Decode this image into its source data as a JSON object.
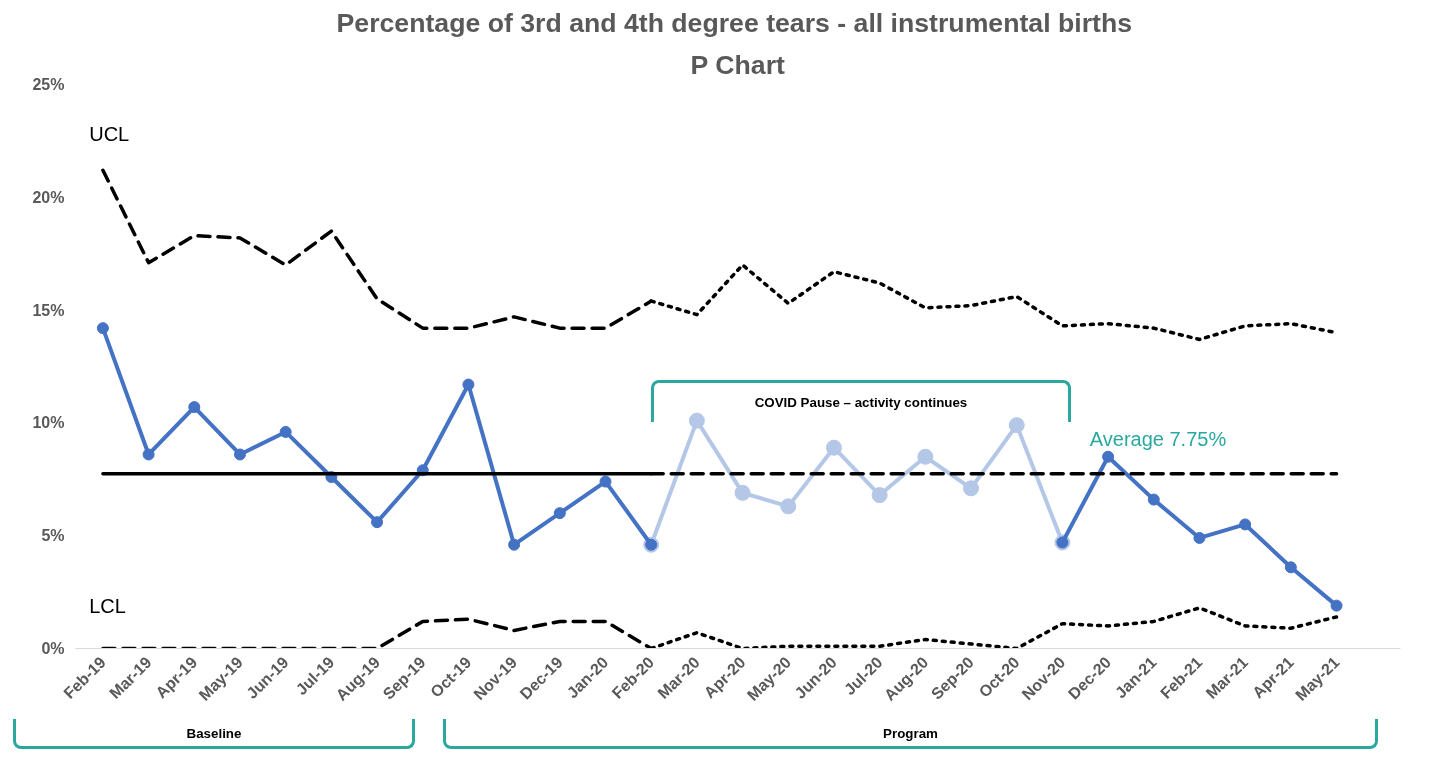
{
  "chart_data": {
    "type": "line",
    "title": "Percentage of 3rd and  4th degree tears - all instrumental births",
    "subtitle": "P Chart",
    "categories": [
      "Feb-19",
      "Mar-19",
      "Apr-19",
      "May-19",
      "Jun-19",
      "Jul-19",
      "Aug-19",
      "Sep-19",
      "Oct-19",
      "Nov-19",
      "Dec-19",
      "Jan-20",
      "Feb-20",
      "Mar-20",
      "Apr-20",
      "May-20",
      "Jun-20",
      "Jul-20",
      "Aug-20",
      "Sep-20",
      "Oct-20",
      "Nov-20",
      "Dec-20",
      "Jan-21",
      "Feb-21",
      "Mar-21",
      "Apr-21",
      "May-21"
    ],
    "series": [
      {
        "color": "#b4c7e7",
        "marker": "circle",
        "line_style": "solid",
        "values": [
          null,
          null,
          null,
          null,
          null,
          null,
          null,
          null,
          null,
          null,
          null,
          null,
          4.6,
          10.1,
          6.9,
          6.3,
          8.9,
          6.8,
          8.5,
          7.1,
          9.9,
          4.7,
          null,
          null,
          null,
          null,
          null,
          null
        ]
      },
      {
        "color": "#4472c4",
        "marker": "circle",
        "line_style": "solid",
        "values": [
          14.2,
          8.6,
          10.7,
          8.6,
          9.6,
          7.6,
          5.6,
          7.9,
          11.7,
          4.6,
          6.0,
          7.4,
          4.6,
          null,
          null,
          null,
          null,
          null,
          null,
          null,
          null,
          4.7,
          8.5,
          6.6,
          4.9,
          5.5,
          3.6,
          1.9
        ]
      },
      {
        "color": "#000000",
        "marker": "none",
        "line_style": "dashed",
        "values": [
          21.2,
          17.1,
          18.3,
          18.2,
          17.0,
          18.5,
          15.5,
          14.2,
          14.2,
          14.7,
          14.2,
          14.2,
          15.4,
          null,
          null,
          null,
          null,
          null,
          null,
          null,
          null,
          null,
          null,
          null,
          null,
          null,
          null,
          null
        ]
      },
      {
        "color": "#000000",
        "marker": "none",
        "line_style": "dotted",
        "values": [
          null,
          null,
          null,
          null,
          null,
          null,
          null,
          null,
          null,
          null,
          null,
          null,
          15.4,
          14.8,
          17.0,
          15.3,
          16.7,
          16.2,
          15.1,
          15.2,
          15.6,
          14.3,
          14.4,
          14.2,
          13.7,
          14.3,
          14.4,
          14.0
        ]
      },
      {
        "color": "#000000",
        "marker": "none",
        "line_style": "dashed",
        "values": [
          0,
          0,
          0,
          0,
          0,
          0,
          0,
          1.2,
          1.3,
          0.8,
          1.2,
          1.2,
          0,
          null,
          null,
          null,
          null,
          null,
          null,
          null,
          null,
          null,
          null,
          null,
          null,
          null,
          null,
          null
        ]
      },
      {
        "color": "#000000",
        "marker": "none",
        "line_style": "dotted",
        "values": [
          null,
          null,
          null,
          null,
          null,
          null,
          null,
          null,
          null,
          null,
          null,
          null,
          0,
          0.7,
          0,
          0.1,
          0.1,
          0.1,
          0.4,
          0.2,
          0,
          1.1,
          1.0,
          1.2,
          1.8,
          1.0,
          0.9,
          1.4
        ]
      },
      {
        "color": "#000000",
        "marker": "none",
        "line_style": "solid",
        "values": [
          7.75,
          7.75,
          7.75,
          7.75,
          7.75,
          7.75,
          7.75,
          7.75,
          7.75,
          7.75,
          7.75,
          7.75,
          7.75,
          null,
          null,
          null,
          null,
          null,
          null,
          null,
          null,
          null,
          null,
          null,
          null,
          null,
          null,
          null
        ]
      },
      {
        "color": "#000000",
        "marker": "none",
        "line_style": "dashed",
        "values": [
          null,
          null,
          null,
          null,
          null,
          null,
          null,
          null,
          null,
          null,
          null,
          null,
          7.75,
          7.75,
          7.75,
          7.75,
          7.75,
          7.75,
          7.75,
          7.75,
          7.75,
          7.75,
          7.75,
          7.75,
          7.75,
          7.75,
          7.75,
          7.75
        ]
      }
    ],
    "ylim": [
      0,
      25
    ],
    "yticks": [
      {
        "value": 0,
        "label": "0%"
      },
      {
        "value": 5,
        "label": "5%"
      },
      {
        "value": 10,
        "label": "10%"
      },
      {
        "value": 15,
        "label": "15%"
      },
      {
        "value": 20,
        "label": "20%"
      },
      {
        "value": 25,
        "label": "25%"
      }
    ],
    "grid": false,
    "annotations": [
      "UCL",
      "LCL",
      "Average 7.75%",
      "COVID Pause – activity continues",
      "Baseline",
      "Program"
    ]
  }
}
